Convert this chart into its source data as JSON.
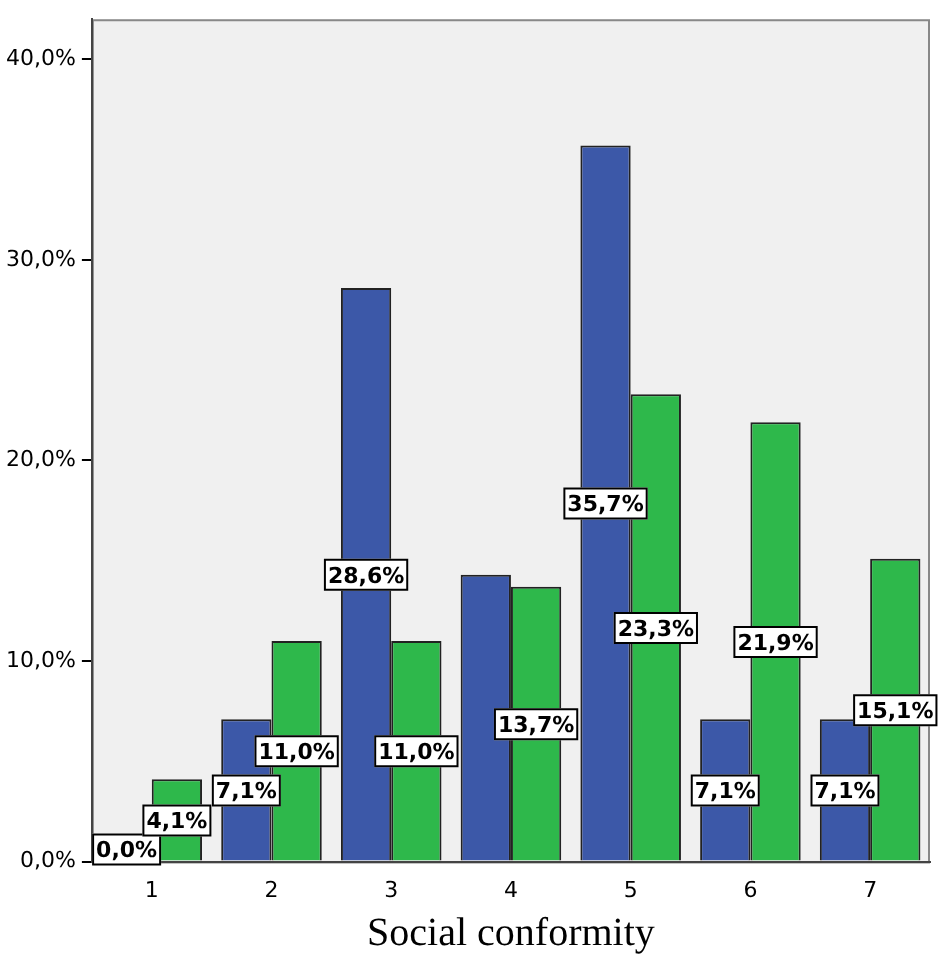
{
  "chart_data": {
    "type": "bar",
    "xlabel": "Social conformity",
    "categories": [
      "1",
      "2",
      "3",
      "4",
      "5",
      "6",
      "7"
    ],
    "series": [
      {
        "color": "#3c58a8",
        "values": [
          0.0,
          7.1,
          28.6,
          14.3,
          35.7,
          7.1,
          7.1
        ],
        "value_labels": [
          "0,0%",
          "7,1%",
          "28,6%",
          null,
          "35,7%",
          "7,1%",
          "7,1%"
        ]
      },
      {
        "color": "#2eb84b",
        "values": [
          4.1,
          11.0,
          11.0,
          13.7,
          23.3,
          21.9,
          15.1
        ],
        "value_labels": [
          "4,1%",
          "11,0%",
          "11,0%",
          "13,7%",
          "23,3%",
          "21,9%",
          "15,1%"
        ]
      }
    ],
    "ylim": [
      0,
      42
    ],
    "yticks": [
      {
        "value": 0,
        "label": "0,0%"
      },
      {
        "value": 10,
        "label": "10,0%"
      },
      {
        "value": 20,
        "label": "20,0%"
      },
      {
        "value": 30,
        "label": "30,0%"
      },
      {
        "value": 40,
        "label": "40,0%"
      }
    ],
    "grid": false,
    "legend": false
  }
}
